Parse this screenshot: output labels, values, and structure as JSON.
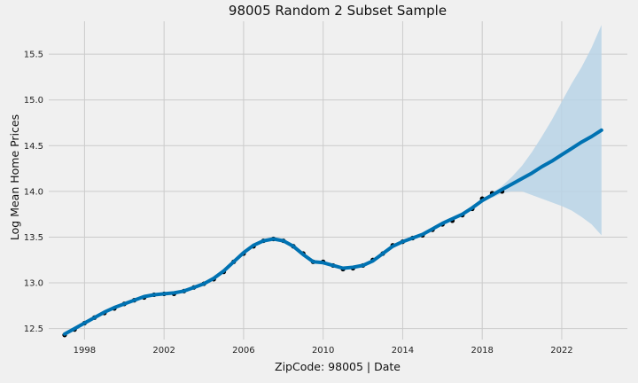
{
  "chart_data": {
    "type": "line",
    "title": "98005 Random 2 Subset Sample",
    "xlabel": "ZipCode: 98005 | Date",
    "ylabel": "Log Mean Home Prices",
    "xlim": [
      1996.2,
      2025.3
    ],
    "ylim": [
      12.38,
      15.86
    ],
    "x_ticks": [
      1998,
      2002,
      2006,
      2010,
      2014,
      2018,
      2022
    ],
    "y_ticks": [
      12.5,
      13.0,
      13.5,
      14.0,
      14.5,
      15.0,
      15.5
    ],
    "y_tick_labels": [
      "12.5",
      "13.0",
      "13.5",
      "14.0",
      "14.5",
      "15.0",
      "15.5"
    ],
    "grid": true,
    "colors": {
      "background": "#f0f0f0",
      "grid": "#cbcbcb",
      "observed": "#000000",
      "forecast": "#0072B2",
      "interval": "#b8d3e6"
    },
    "series": [
      {
        "kind": "observed",
        "x": [
          1997.0,
          1997.5,
          1998.0,
          1998.5,
          1999.0,
          1999.5,
          2000.0,
          2000.5,
          2001.0,
          2001.5,
          2002.0,
          2002.5,
          2003.0,
          2003.5,
          2004.0,
          2004.5,
          2005.0,
          2005.5,
          2006.0,
          2006.5,
          2007.0,
          2007.5,
          2008.0,
          2008.5,
          2009.0,
          2009.5,
          2010.0,
          2010.5,
          2011.0,
          2011.5,
          2012.0,
          2012.5,
          2013.0,
          2013.5,
          2014.0,
          2014.5,
          2015.0,
          2015.5,
          2016.0,
          2016.5,
          2017.0,
          2017.5,
          2018.0,
          2018.5,
          2019.0
        ],
        "values": [
          12.43,
          12.49,
          12.56,
          12.62,
          12.67,
          12.72,
          12.77,
          12.81,
          12.84,
          12.87,
          12.88,
          12.88,
          12.91,
          12.95,
          12.99,
          13.04,
          13.12,
          13.23,
          13.32,
          13.4,
          13.46,
          13.48,
          13.46,
          13.4,
          13.32,
          13.23,
          13.23,
          13.19,
          13.15,
          13.16,
          13.19,
          13.25,
          13.32,
          13.41,
          13.45,
          13.49,
          13.52,
          13.58,
          13.64,
          13.68,
          13.74,
          13.81,
          13.92,
          13.98,
          14.0
        ]
      },
      {
        "kind": "forecast",
        "x": [
          1997.0,
          1997.5,
          1998.0,
          1998.5,
          1999.0,
          1999.5,
          2000.0,
          2000.5,
          2001.0,
          2001.5,
          2002.0,
          2002.5,
          2003.0,
          2003.5,
          2004.0,
          2004.5,
          2005.0,
          2005.5,
          2006.0,
          2006.5,
          2007.0,
          2007.5,
          2008.0,
          2008.5,
          2009.0,
          2009.5,
          2010.0,
          2010.5,
          2011.0,
          2011.5,
          2012.0,
          2012.5,
          2013.0,
          2013.5,
          2014.0,
          2014.5,
          2015.0,
          2015.5,
          2016.0,
          2016.5,
          2017.0,
          2017.5,
          2018.0,
          2018.5,
          2019.0,
          2019.5,
          2020.0,
          2020.5,
          2021.0,
          2021.5,
          2022.0,
          2022.5,
          2023.0,
          2023.5,
          2024.0
        ],
        "values": [
          12.44,
          12.5,
          12.56,
          12.62,
          12.68,
          12.73,
          12.77,
          12.81,
          12.85,
          12.87,
          12.88,
          12.89,
          12.91,
          12.95,
          12.99,
          13.05,
          13.13,
          13.23,
          13.33,
          13.41,
          13.46,
          13.48,
          13.46,
          13.4,
          13.31,
          13.23,
          13.22,
          13.19,
          13.16,
          13.17,
          13.19,
          13.24,
          13.32,
          13.4,
          13.45,
          13.49,
          13.53,
          13.59,
          13.65,
          13.7,
          13.75,
          13.82,
          13.9,
          13.96,
          14.02,
          14.08,
          14.14,
          14.2,
          14.27,
          14.33,
          14.4,
          14.47,
          14.54,
          14.6,
          14.67
        ]
      },
      {
        "kind": "interval",
        "x": [
          2018.5,
          2019.0,
          2019.5,
          2020.0,
          2020.5,
          2021.0,
          2021.5,
          2022.0,
          2022.5,
          2023.0,
          2023.5,
          2024.0
        ],
        "upper": [
          13.98,
          14.06,
          14.16,
          14.28,
          14.43,
          14.6,
          14.78,
          14.98,
          15.18,
          15.36,
          15.57,
          15.82
        ],
        "lower": [
          13.93,
          13.98,
          14.0,
          14.0,
          13.96,
          13.92,
          13.88,
          13.84,
          13.79,
          13.72,
          13.64,
          13.52
        ]
      }
    ]
  }
}
